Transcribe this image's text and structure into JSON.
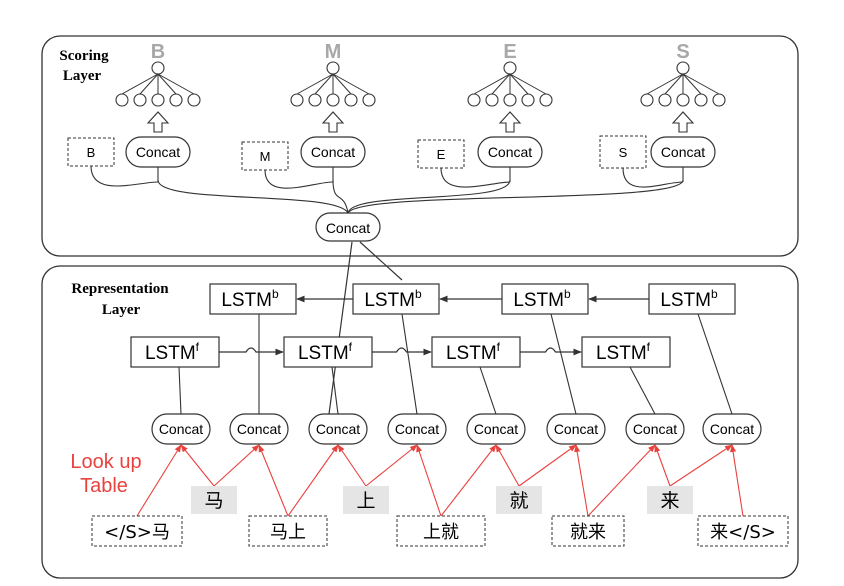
{
  "scoring_layer": {
    "title_line1": "Scoring",
    "title_line2": "Layer",
    "labels": [
      "B",
      "M",
      "E",
      "S"
    ],
    "tag_boxes": [
      "B",
      "M",
      "E",
      "S"
    ],
    "concat_label": "Concat"
  },
  "representation_layer": {
    "title_line1": "Representation",
    "title_line2": "Layer",
    "lstm_b": {
      "text": "LSTM",
      "sup": "b"
    },
    "lstm_f": {
      "text": "LSTM",
      "sup": "f"
    },
    "concat_label": "Concat"
  },
  "lookup": {
    "label_line1": "Look up",
    "label_line2": "Table",
    "characters": [
      "马",
      "上",
      "就",
      "来"
    ],
    "bigrams": [
      "</S>马",
      "马上",
      "上就",
      "就来",
      "来</S>"
    ]
  },
  "colors": {
    "lookup_red": "#e8423f",
    "edge": "#333333",
    "faded_label": "#a8a8a8",
    "char_bg": "#e5e5e5"
  }
}
